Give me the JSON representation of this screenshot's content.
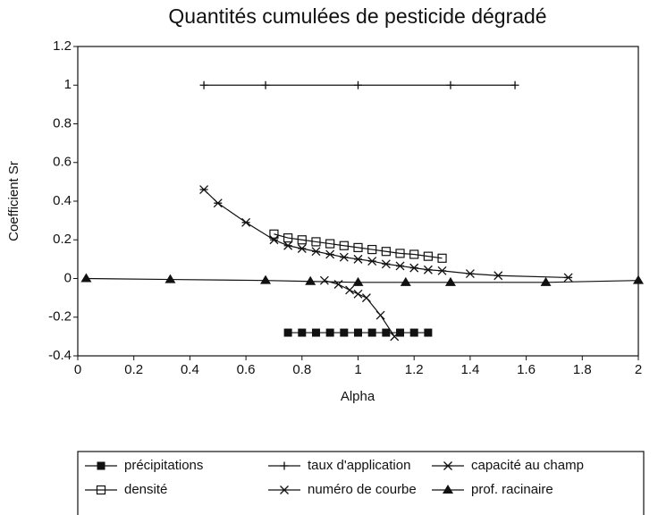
{
  "chart_data": {
    "type": "line",
    "title": "Quantités cumulées de pesticide dégradé",
    "x_label": "Alpha",
    "y_label": "Coefficient Sr",
    "xlim": [
      0,
      2
    ],
    "ylim": [
      -0.4,
      1.2
    ],
    "xticks": [
      0,
      0.2,
      0.4,
      0.6,
      0.8,
      1,
      1.2,
      1.4,
      1.6,
      1.8,
      2
    ],
    "yticks": [
      -0.4,
      -0.2,
      0,
      0.2,
      0.4,
      0.6,
      0.8,
      1,
      1.2
    ],
    "series": [
      {
        "name": "précipitations",
        "color": "#111111",
        "marker": "square-filled",
        "x": [
          0.75,
          0.8,
          0.85,
          0.9,
          0.95,
          1.0,
          1.05,
          1.1,
          1.15,
          1.2,
          1.25
        ],
        "values": [
          -0.28,
          -0.28,
          -0.28,
          -0.28,
          -0.28,
          -0.28,
          -0.28,
          -0.28,
          -0.28,
          -0.28,
          -0.28
        ]
      },
      {
        "name": "taux d'application",
        "color": "#111111",
        "marker": "plus",
        "x": [
          0.45,
          0.67,
          1.0,
          1.33,
          1.56
        ],
        "values": [
          1,
          1,
          1,
          1,
          1
        ]
      },
      {
        "name": "capacité au champ",
        "color": "#111111",
        "marker": "asterisk",
        "x": [
          0.45,
          0.5,
          0.6,
          0.7,
          0.75,
          0.8,
          0.85,
          0.9,
          0.95,
          1.0,
          1.05,
          1.1,
          1.15,
          1.2,
          1.25,
          1.3,
          1.4,
          1.5,
          1.75
        ],
        "values": [
          0.46,
          0.39,
          0.29,
          0.2,
          0.17,
          0.155,
          0.14,
          0.125,
          0.11,
          0.1,
          0.09,
          0.075,
          0.065,
          0.055,
          0.045,
          0.04,
          0.025,
          0.015,
          0.005
        ]
      },
      {
        "name": "densité",
        "color": "#111111",
        "marker": "square-open",
        "x": [
          0.7,
          0.75,
          0.8,
          0.85,
          0.9,
          0.95,
          1.0,
          1.05,
          1.1,
          1.15,
          1.2,
          1.25,
          1.3
        ],
        "values": [
          0.23,
          0.21,
          0.2,
          0.19,
          0.18,
          0.17,
          0.16,
          0.15,
          0.14,
          0.13,
          0.125,
          0.115,
          0.105
        ]
      },
      {
        "name": "numéro de courbe",
        "color": "#111111",
        "marker": "x",
        "x": [
          0.88,
          0.93,
          0.97,
          1.0,
          1.03,
          1.08,
          1.13
        ],
        "values": [
          -0.01,
          -0.03,
          -0.06,
          -0.08,
          -0.1,
          -0.19,
          -0.3
        ]
      },
      {
        "name": "prof. racinaire",
        "color": "#111111",
        "marker": "triangle-filled",
        "x": [
          0.03,
          0.33,
          0.67,
          0.83,
          1.0,
          1.17,
          1.33,
          1.67,
          2.0
        ],
        "values": [
          0,
          -0.005,
          -0.01,
          -0.015,
          -0.02,
          -0.02,
          -0.02,
          -0.02,
          -0.01
        ]
      }
    ]
  }
}
